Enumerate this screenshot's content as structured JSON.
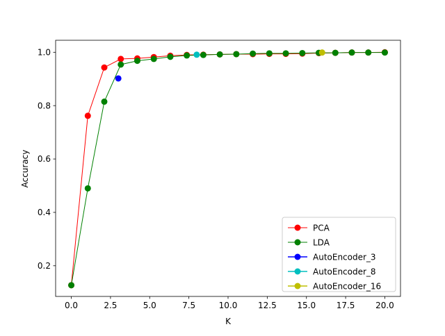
{
  "chart_data": {
    "type": "line",
    "title": "",
    "xlabel": "K",
    "ylabel": "Accuracy",
    "xlim": [
      -1.0,
      21.0
    ],
    "ylim": [
      0.085,
      1.045
    ],
    "xticks": [
      0.0,
      2.5,
      5.0,
      7.5,
      10.0,
      12.5,
      15.0,
      17.5,
      20.0
    ],
    "xtick_labels": [
      "0.0",
      "2.5",
      "5.0",
      "7.5",
      "10.0",
      "12.5",
      "15.0",
      "17.5",
      "20.0"
    ],
    "yticks": [
      0.2,
      0.4,
      0.6,
      0.8,
      1.0
    ],
    "ytick_labels": [
      "0.2",
      "0.4",
      "0.6",
      "0.8",
      "1.0"
    ],
    "grid": false,
    "legend_position": "lower-right",
    "series": [
      {
        "name": "PCA",
        "color": "#ff0000",
        "x": [
          0,
          1.053,
          2.105,
          3.158,
          4.211,
          5.263,
          6.316,
          7.368,
          8.421,
          9.474,
          10.526,
          11.579,
          12.632,
          13.684,
          14.737,
          15.789,
          16.842,
          17.895,
          18.947,
          20.0
        ],
        "y": [
          0.127,
          0.762,
          0.943,
          0.975,
          0.977,
          0.982,
          0.987,
          0.99,
          0.991,
          0.992,
          0.993,
          0.993,
          0.994,
          0.994,
          0.995,
          0.997,
          0.998,
          0.999,
          0.999,
          1.0
        ]
      },
      {
        "name": "LDA",
        "color": "#008000",
        "x": [
          0,
          1.053,
          2.105,
          3.158,
          4.211,
          5.263,
          6.316,
          7.368,
          8.421,
          9.474,
          10.526,
          11.579,
          12.632,
          13.684,
          14.737,
          15.789,
          16.842,
          17.895,
          18.947,
          20.0
        ],
        "y": [
          0.127,
          0.49,
          0.815,
          0.954,
          0.968,
          0.975,
          0.983,
          0.988,
          0.99,
          0.992,
          0.993,
          0.995,
          0.996,
          0.996,
          0.997,
          0.998,
          0.998,
          0.999,
          0.999,
          0.999
        ]
      },
      {
        "name": "AutoEncoder_3",
        "color": "#0000ff",
        "x": [
          3.0
        ],
        "y": [
          0.902
        ]
      },
      {
        "name": "AutoEncoder_8",
        "color": "#00bfbf",
        "x": [
          8.0
        ],
        "y": [
          0.991
        ]
      },
      {
        "name": "AutoEncoder_16",
        "color": "#bfbf00",
        "x": [
          16.0
        ],
        "y": [
          0.999
        ]
      }
    ]
  }
}
